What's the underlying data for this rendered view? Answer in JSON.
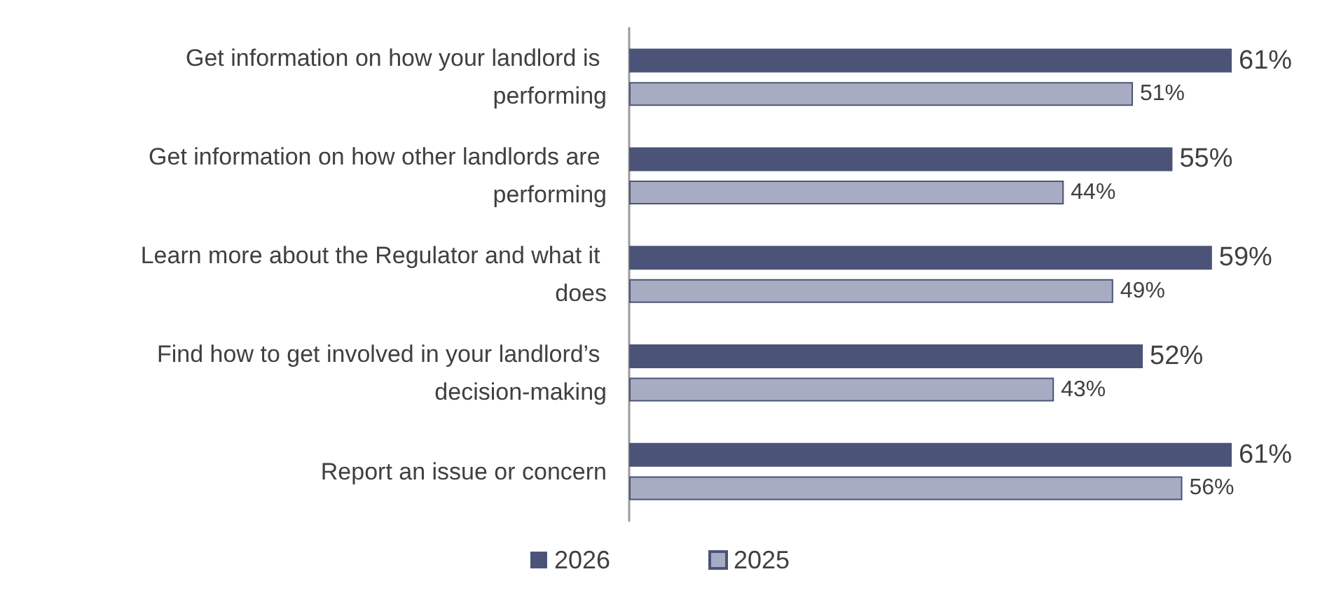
{
  "chart_data": {
    "type": "bar",
    "orientation": "horizontal",
    "categories": [
      "Get information on how your landlord is performing",
      "Get information on how other landlords are performing",
      "Learn more about the Regulator and what it does",
      "Find how to get involved in your landlord’s decision-making",
      "Report an issue or concern"
    ],
    "series": [
      {
        "name": "2026",
        "color": "#4b5478",
        "values": [
          61,
          55,
          59,
          52,
          61
        ],
        "value_labels": [
          "61%",
          "55%",
          "59%",
          "52%",
          "61%"
        ]
      },
      {
        "name": "2025",
        "color": "#a8acc3",
        "values": [
          51,
          44,
          49,
          43,
          56
        ],
        "value_labels": [
          "51%",
          "44%",
          "49%",
          "43%",
          "56%"
        ]
      }
    ],
    "tick_labels": "y",
    "legend": "bottom"
  }
}
